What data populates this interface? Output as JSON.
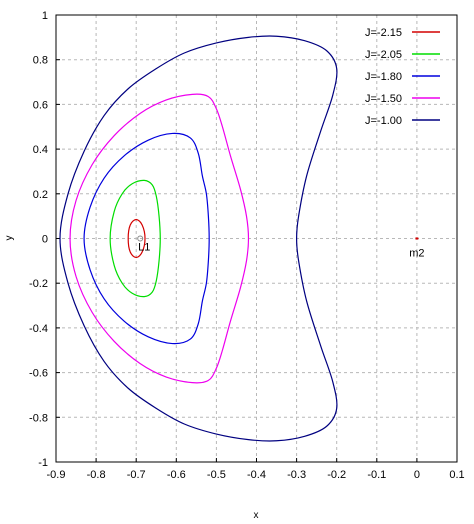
{
  "chart_data": {
    "type": "line",
    "title": "",
    "xlabel": "x",
    "ylabel": "y",
    "xlim": [
      -0.9,
      0.1
    ],
    "ylim": [
      -1,
      1
    ],
    "grid": true,
    "legend_position": "top-right",
    "x_ticks": [
      "-0.9",
      "-0.8",
      "-0.7",
      "-0.6",
      "-0.5",
      "-0.4",
      "-0.3",
      "-0.2",
      "-0.1",
      "0",
      "0.1"
    ],
    "y_ticks": [
      "1",
      "0.8",
      "0.6",
      "0.4",
      "0.2",
      "0",
      "-0.2",
      "-0.4",
      "-0.6",
      "-0.8",
      "-1"
    ],
    "series": [
      {
        "name": "J=-2.15",
        "color": "#d40000",
        "points": [
          [
            -0.72,
            0.0
          ],
          [
            -0.715,
            0.06
          ],
          [
            -0.7,
            0.085
          ],
          [
            -0.685,
            0.06
          ],
          [
            -0.678,
            0.0
          ],
          [
            -0.685,
            -0.06
          ],
          [
            -0.7,
            -0.085
          ],
          [
            -0.715,
            -0.06
          ],
          [
            -0.72,
            0.0
          ]
        ]
      },
      {
        "name": "J=-2.05",
        "color": "#00dd00",
        "points": [
          [
            -0.765,
            0.0
          ],
          [
            -0.755,
            0.12
          ],
          [
            -0.735,
            0.2
          ],
          [
            -0.71,
            0.245
          ],
          [
            -0.68,
            0.26
          ],
          [
            -0.66,
            0.24
          ],
          [
            -0.65,
            0.19
          ],
          [
            -0.643,
            0.1
          ],
          [
            -0.64,
            0.0
          ],
          [
            -0.643,
            -0.1
          ],
          [
            -0.65,
            -0.19
          ],
          [
            -0.66,
            -0.24
          ],
          [
            -0.68,
            -0.26
          ],
          [
            -0.71,
            -0.245
          ],
          [
            -0.735,
            -0.2
          ],
          [
            -0.755,
            -0.12
          ],
          [
            -0.765,
            0.0
          ]
        ]
      },
      {
        "name": "J=-1.80",
        "color": "#0000dd",
        "points": [
          [
            -0.83,
            0.0
          ],
          [
            -0.815,
            0.14
          ],
          [
            -0.78,
            0.27
          ],
          [
            -0.73,
            0.37
          ],
          [
            -0.67,
            0.44
          ],
          [
            -0.61,
            0.47
          ],
          [
            -0.565,
            0.45
          ],
          [
            -0.545,
            0.38
          ],
          [
            -0.535,
            0.28
          ],
          [
            -0.525,
            0.2
          ],
          [
            -0.52,
            0.1
          ],
          [
            -0.518,
            0.0
          ],
          [
            -0.52,
            -0.1
          ],
          [
            -0.525,
            -0.2
          ],
          [
            -0.535,
            -0.28
          ],
          [
            -0.545,
            -0.38
          ],
          [
            -0.565,
            -0.45
          ],
          [
            -0.61,
            -0.47
          ],
          [
            -0.67,
            -0.44
          ],
          [
            -0.73,
            -0.37
          ],
          [
            -0.78,
            -0.27
          ],
          [
            -0.815,
            -0.14
          ],
          [
            -0.83,
            0.0
          ]
        ]
      },
      {
        "name": "J=-1.50",
        "color": "#ee00ee",
        "points": [
          [
            -0.865,
            0.0
          ],
          [
            -0.85,
            0.17
          ],
          [
            -0.81,
            0.33
          ],
          [
            -0.755,
            0.46
          ],
          [
            -0.69,
            0.56
          ],
          [
            -0.625,
            0.62
          ],
          [
            -0.56,
            0.645
          ],
          [
            -0.52,
            0.635
          ],
          [
            -0.5,
            0.58
          ],
          [
            -0.485,
            0.5
          ],
          [
            -0.465,
            0.37
          ],
          [
            -0.44,
            0.22
          ],
          [
            -0.425,
            0.1
          ],
          [
            -0.42,
            0.0
          ],
          [
            -0.425,
            -0.1
          ],
          [
            -0.44,
            -0.22
          ],
          [
            -0.465,
            -0.37
          ],
          [
            -0.485,
            -0.5
          ],
          [
            -0.5,
            -0.58
          ],
          [
            -0.52,
            -0.635
          ],
          [
            -0.56,
            -0.645
          ],
          [
            -0.625,
            -0.62
          ],
          [
            -0.69,
            -0.56
          ],
          [
            -0.755,
            -0.46
          ],
          [
            -0.81,
            -0.33
          ],
          [
            -0.85,
            -0.17
          ],
          [
            -0.865,
            0.0
          ]
        ]
      },
      {
        "name": "J=-1.00",
        "color": "#000080",
        "points": [
          [
            -0.89,
            0.0
          ],
          [
            -0.87,
            0.2
          ],
          [
            -0.83,
            0.39
          ],
          [
            -0.78,
            0.55
          ],
          [
            -0.72,
            0.67
          ],
          [
            -0.65,
            0.76
          ],
          [
            -0.58,
            0.83
          ],
          [
            -0.5,
            0.875
          ],
          [
            -0.42,
            0.9
          ],
          [
            -0.35,
            0.905
          ],
          [
            -0.28,
            0.885
          ],
          [
            -0.225,
            0.84
          ],
          [
            -0.2,
            0.76
          ],
          [
            -0.21,
            0.64
          ],
          [
            -0.24,
            0.48
          ],
          [
            -0.275,
            0.28
          ],
          [
            -0.295,
            0.1
          ],
          [
            -0.3,
            0.0
          ],
          [
            -0.295,
            -0.1
          ],
          [
            -0.275,
            -0.28
          ],
          [
            -0.24,
            -0.48
          ],
          [
            -0.21,
            -0.64
          ],
          [
            -0.2,
            -0.76
          ],
          [
            -0.225,
            -0.84
          ],
          [
            -0.28,
            -0.885
          ],
          [
            -0.35,
            -0.905
          ],
          [
            -0.42,
            -0.9
          ],
          [
            -0.5,
            -0.875
          ],
          [
            -0.58,
            -0.83
          ],
          [
            -0.65,
            -0.76
          ],
          [
            -0.72,
            -0.67
          ],
          [
            -0.78,
            -0.55
          ],
          [
            -0.83,
            -0.39
          ],
          [
            -0.87,
            -0.2
          ],
          [
            -0.89,
            0.0
          ]
        ]
      }
    ],
    "annotations": [
      {
        "text": "L1",
        "x": -0.69,
        "y": 0.0
      },
      {
        "text": "m2",
        "x": 0.0,
        "y": 0.0
      }
    ]
  }
}
